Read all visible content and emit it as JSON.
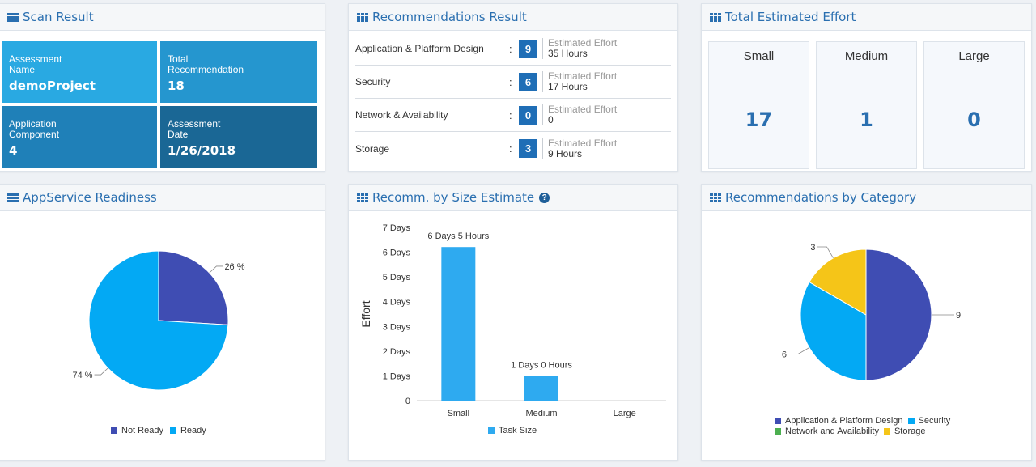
{
  "scan_result": {
    "title": "Scan Result",
    "tiles": [
      {
        "label": "Assessment\nName",
        "value": "demoProject"
      },
      {
        "label": "Total\nRecommendation",
        "value": "18"
      },
      {
        "label": "Application\nComponent",
        "value": "4"
      },
      {
        "label": "Assessment\nDate",
        "value": "1/26/2018"
      }
    ]
  },
  "recommendations_result": {
    "title": "Recommendations Result",
    "rows": [
      {
        "name": "Application & Platform Design",
        "count": "9",
        "effort_label": "Estimated Effort",
        "effort": "35 Hours"
      },
      {
        "name": "Security",
        "count": "6",
        "effort_label": "Estimated Effort",
        "effort": "17 Hours"
      },
      {
        "name": "Network & Availability",
        "count": "0",
        "effort_label": "Estimated Effort",
        "effort": "0"
      },
      {
        "name": "Storage",
        "count": "3",
        "effort_label": "Estimated Effort",
        "effort": "9 Hours"
      }
    ]
  },
  "total_effort": {
    "title": "Total Estimated Effort",
    "columns": [
      {
        "label": "Small",
        "value": "17"
      },
      {
        "label": "Medium",
        "value": "1"
      },
      {
        "label": "Large",
        "value": "0"
      }
    ]
  },
  "appservice_readiness": {
    "title": "AppService Readiness",
    "legend": [
      "Not Ready",
      "Ready"
    ]
  },
  "recomm_by_size": {
    "title": "Recomm. by Size Estimate",
    "legend": "Task Size"
  },
  "recomm_by_category": {
    "title": "Recommendations by Category",
    "legend": [
      "Application & Platform Design",
      "Security",
      "Network and Availability",
      "Storage"
    ]
  },
  "chart_data": [
    {
      "type": "pie",
      "labels": [
        "Not Ready",
        "Ready"
      ],
      "values": [
        26,
        74
      ],
      "data_labels": [
        "26 %",
        "74 %"
      ],
      "colors": [
        "#3f4db3",
        "#03a9f4"
      ],
      "legend_position": "bottom"
    },
    {
      "type": "bar",
      "categories": [
        "Small",
        "Medium",
        "Large"
      ],
      "values": [
        6.2083,
        1,
        0
      ],
      "data_labels": [
        "6 Days 5 Hours",
        "1 Days 0 Hours",
        ""
      ],
      "ylabel": "Effort",
      "yticks": [
        "0",
        "1 Days",
        "2 Days",
        "3 Days",
        "4 Days",
        "5 Days",
        "6 Days",
        "7 Days"
      ],
      "ylim": [
        0,
        7
      ],
      "color": "#2eaaf0",
      "series": [
        {
          "name": "Task Size"
        }
      ],
      "legend_position": "bottom"
    },
    {
      "type": "pie",
      "labels": [
        "Application & Platform Design",
        "Security",
        "Network and Availability",
        "Storage"
      ],
      "values": [
        9,
        6,
        0,
        3
      ],
      "data_labels": [
        "9",
        "6",
        "",
        "3"
      ],
      "colors": [
        "#3f4db3",
        "#03a9f4",
        "#4caf50",
        "#f5c518"
      ],
      "legend_position": "bottom"
    }
  ]
}
